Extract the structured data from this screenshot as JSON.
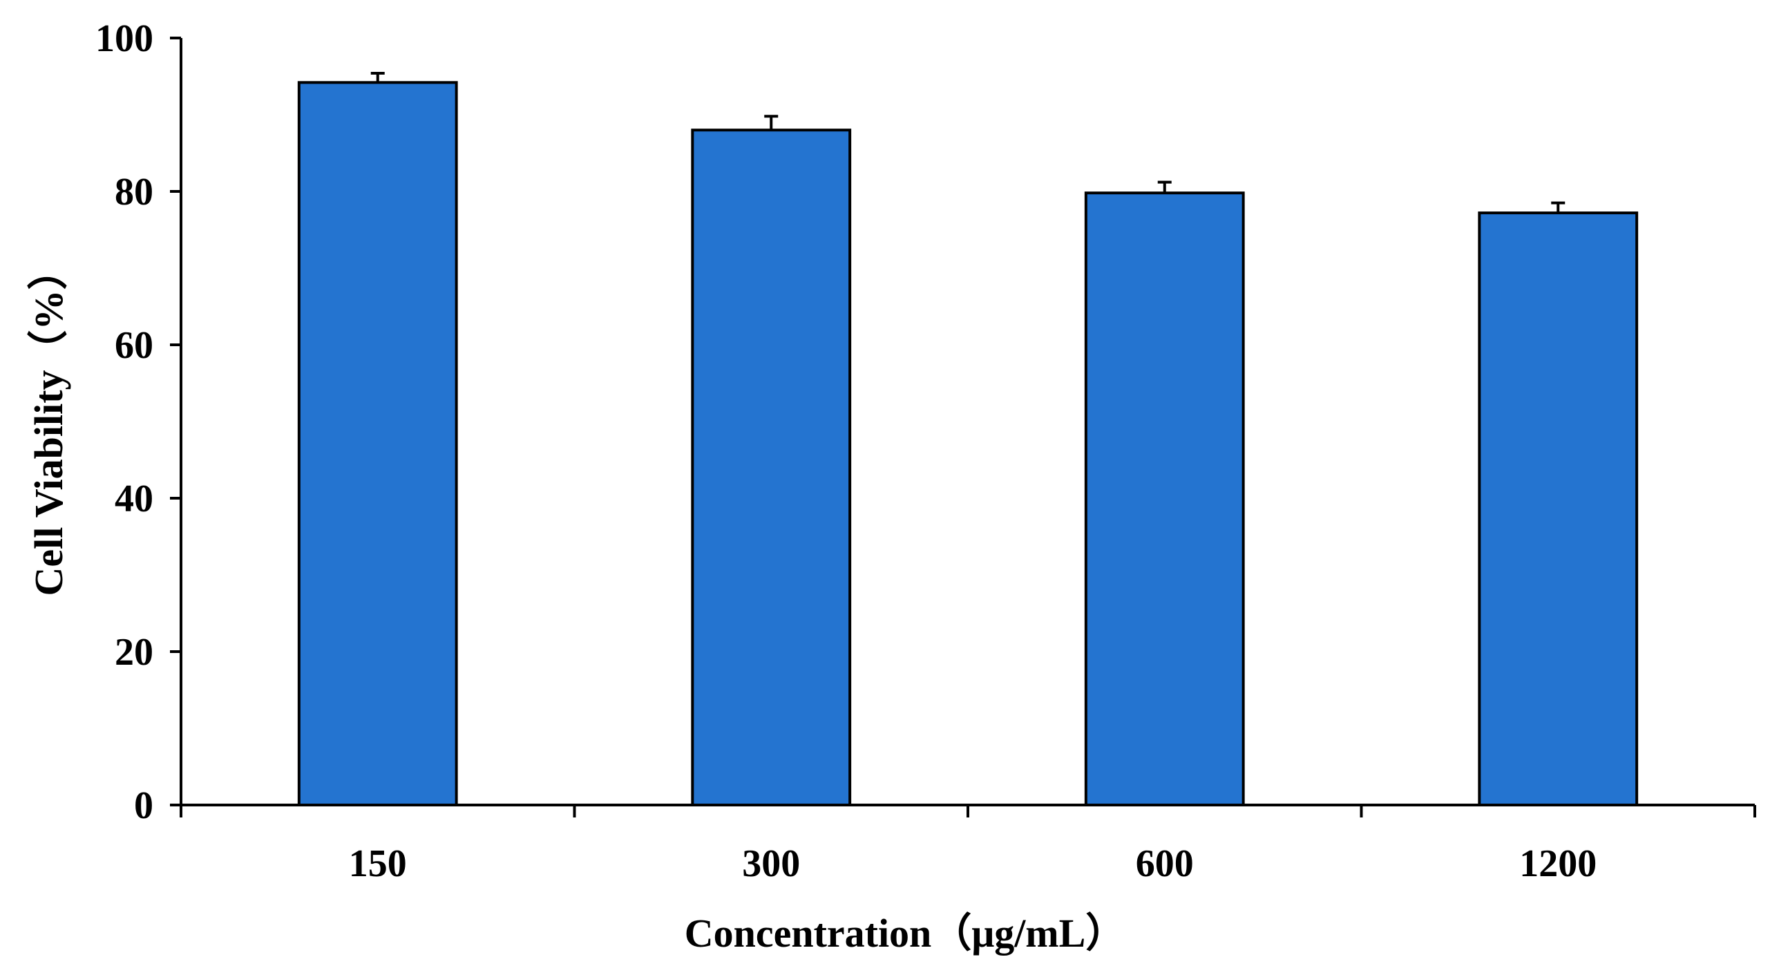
{
  "chart_data": {
    "type": "bar",
    "title": "",
    "xlabel": "Concentration（μg/mL）",
    "ylabel": "Cell Viability（%）",
    "categories": [
      "150",
      "300",
      "600",
      "1200"
    ],
    "values": [
      94.2,
      88.0,
      79.8,
      77.2
    ],
    "error": [
      1.2,
      1.8,
      1.4,
      1.3
    ],
    "ylim": [
      0,
      100
    ],
    "yticks": [
      "0",
      "20",
      "40",
      "60",
      "80",
      "100"
    ],
    "bar_color": "#2474D0",
    "bar_edge_color": "#000000",
    "grid": false,
    "legend": "none"
  }
}
